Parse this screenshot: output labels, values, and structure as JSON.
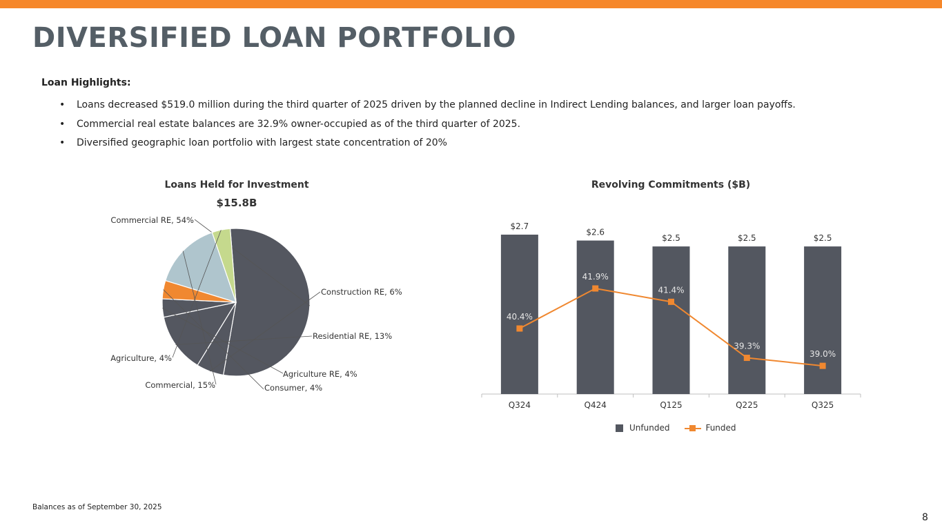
{
  "page": {
    "title": "DIVERSIFIED LOAN PORTFOLIO",
    "highlights_heading": "Loan Highlights:",
    "bullets": [
      "Loans decreased $519.0 million during the third quarter of 2025 driven by the planned decline in Indirect Lending balances, and larger loan payoffs.",
      "Commercial real estate balances are 32.9% owner-occupied as of the third quarter of 2025.",
      "Diversified geographic loan portfolio with largest state concentration of 20%"
    ],
    "bullet_char": "•",
    "footnote": "Balances as of September 30, 2025",
    "page_number": "8"
  },
  "colors": {
    "accent_bar": "#F6872A",
    "title": "#545E66",
    "dark_gray": "#545760",
    "light_blue": "#AFC5CD",
    "light_green": "#C5D98D",
    "orange": "#F08830"
  },
  "chart_data": [
    {
      "type": "pie",
      "title": "Loans Held for Investment",
      "subtitle": "$15.8B",
      "slices": [
        {
          "label": "Commercial RE",
          "value": 54,
          "display": "Commercial RE, 54%",
          "color": "#545760"
        },
        {
          "label": "Construction RE",
          "value": 6,
          "display": "Construction RE, 6%",
          "color": "#545760"
        },
        {
          "label": "Residential RE",
          "value": 13,
          "display": "Residential RE, 13%",
          "color": "#545760"
        },
        {
          "label": "Agriculture RE",
          "value": 4,
          "display": "Agriculture RE, 4%",
          "color": "#545760"
        },
        {
          "label": "Consumer",
          "value": 4,
          "display": "Consumer, 4%",
          "color": "#F08830"
        },
        {
          "label": "Commercial",
          "value": 15,
          "display": "Commercial, 15%",
          "color": "#AFC5CD"
        },
        {
          "label": "Agriculture",
          "value": 4,
          "display": "Agriculture, 4%",
          "color": "#C5D98D"
        }
      ]
    },
    {
      "type": "bar",
      "title": "Revolving Commitments ($B)",
      "categories": [
        "Q324",
        "Q424",
        "Q125",
        "Q225",
        "Q325"
      ],
      "series": [
        {
          "name": "Unfunded",
          "type": "bar",
          "values": [
            2.7,
            2.6,
            2.5,
            2.5,
            2.5
          ],
          "labels": [
            "$2.7",
            "$2.6",
            "$2.5",
            "$2.5",
            "$2.5"
          ],
          "color": "#535760"
        },
        {
          "name": "Funded",
          "type": "line",
          "values": [
            40.4,
            41.9,
            41.4,
            39.3,
            39.0
          ],
          "labels": [
            "40.4%",
            "41.9%",
            "41.4%",
            "39.3%",
            "39.0%"
          ],
          "color": "#F08830"
        }
      ],
      "legend": "bottom-center"
    }
  ]
}
